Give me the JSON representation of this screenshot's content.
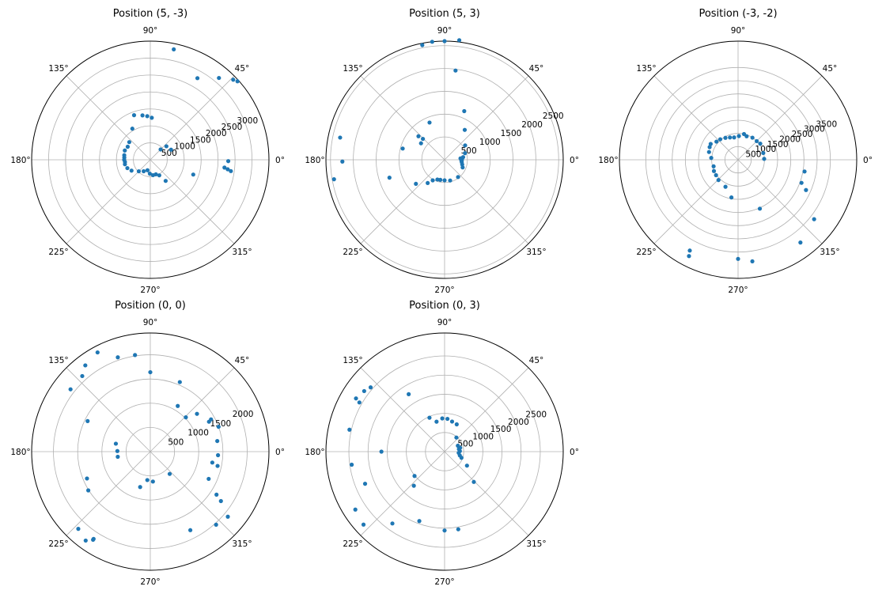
{
  "colors": {
    "point": "#1f77b4",
    "grid": "#b0b0b0",
    "frame": "#000000"
  },
  "chart_data": [
    {
      "type": "scatter",
      "projection": "polar",
      "title": "Position (5, -3)",
      "theta_ticks": [
        0,
        45,
        90,
        135,
        180,
        225,
        270,
        315
      ],
      "theta_tick_labels": [
        "0°",
        "45°",
        "90°",
        "135°",
        "180°",
        "225°",
        "270°",
        "315°"
      ],
      "r_ticks": [
        500,
        1000,
        1500,
        2000,
        2500,
        3000
      ],
      "r_tick_labels": [
        "500",
        "1000",
        "1500",
        "2000",
        "2500",
        "3000"
      ],
      "rlim": [
        0,
        3500
      ],
      "grid": true,
      "points": [
        {
          "theta": 78,
          "r": 3330
        },
        {
          "theta": 60,
          "r": 2780
        },
        {
          "theta": 50,
          "r": 3150
        },
        {
          "theta": 44,
          "r": 3400
        },
        {
          "theta": 42,
          "r": 3460
        },
        {
          "theta": 100,
          "r": 1330
        },
        {
          "theta": 94,
          "r": 1290
        },
        {
          "theta": 88,
          "r": 1240
        },
        {
          "theta": 110,
          "r": 1400
        },
        {
          "theta": 120,
          "r": 1060
        },
        {
          "theta": 140,
          "r": 810
        },
        {
          "theta": 150,
          "r": 770
        },
        {
          "theta": 160,
          "r": 800
        },
        {
          "theta": 170,
          "r": 780
        },
        {
          "theta": 175,
          "r": 770
        },
        {
          "theta": 180,
          "r": 770
        },
        {
          "theta": 185,
          "r": 750
        },
        {
          "theta": 190,
          "r": 760
        },
        {
          "theta": 200,
          "r": 720
        },
        {
          "theta": 210,
          "r": 640
        },
        {
          "theta": 225,
          "r": 480
        },
        {
          "theta": 240,
          "r": 390
        },
        {
          "theta": 255,
          "r": 320
        },
        {
          "theta": 268,
          "r": 410
        },
        {
          "theta": 280,
          "r": 460
        },
        {
          "theta": 291,
          "r": 460
        },
        {
          "theta": 300,
          "r": 530
        },
        {
          "theta": 306,
          "r": 770
        },
        {
          "theta": 341,
          "r": 1340
        },
        {
          "theta": 354,
          "r": 2200
        },
        {
          "theta": 353,
          "r": 2300
        },
        {
          "theta": 352,
          "r": 2400
        },
        {
          "theta": 359,
          "r": 2300
        },
        {
          "theta": 40,
          "r": 620
        },
        {
          "theta": 26,
          "r": 680
        },
        {
          "theta": 45,
          "r": 430
        }
      ]
    },
    {
      "type": "scatter",
      "projection": "polar",
      "title": "Position (5, 3)",
      "theta_ticks": [
        0,
        45,
        90,
        135,
        180,
        225,
        270,
        315
      ],
      "theta_tick_labels": [
        "0°",
        "45°",
        "90°",
        "135°",
        "180°",
        "225°",
        "270°",
        "315°"
      ],
      "r_ticks": [
        500,
        1000,
        1500,
        2000,
        2500
      ],
      "r_tick_labels": [
        "500",
        "1000",
        "1500",
        "2000",
        "2500"
      ],
      "rlim": [
        0,
        2600
      ],
      "grid": true,
      "points": [
        {
          "theta": 101,
          "r": 2560
        },
        {
          "theta": 96,
          "r": 2600
        },
        {
          "theta": 90,
          "r": 2600
        },
        {
          "theta": 83,
          "r": 2640
        },
        {
          "theta": 83,
          "r": 1970
        },
        {
          "theta": 68,
          "r": 1150
        },
        {
          "theta": 56,
          "r": 790
        },
        {
          "theta": 35,
          "r": 550
        },
        {
          "theta": 18,
          "r": 470
        },
        {
          "theta": 8,
          "r": 410
        },
        {
          "theta": 0,
          "r": 380
        },
        {
          "theta": 352,
          "r": 380
        },
        {
          "theta": 345,
          "r": 400
        },
        {
          "theta": 337,
          "r": 430
        },
        {
          "theta": 308,
          "r": 480
        },
        {
          "theta": 285,
          "r": 470
        },
        {
          "theta": 270,
          "r": 450
        },
        {
          "theta": 258,
          "r": 450
        },
        {
          "theta": 250,
          "r": 460
        },
        {
          "theta": 240,
          "r": 520
        },
        {
          "theta": 234,
          "r": 630
        },
        {
          "theta": 220,
          "r": 820
        },
        {
          "theta": 198,
          "r": 1270
        },
        {
          "theta": 190,
          "r": 2460
        },
        {
          "theta": 181,
          "r": 2240
        },
        {
          "theta": 168,
          "r": 2340
        },
        {
          "theta": 165,
          "r": 950
        },
        {
          "theta": 145,
          "r": 630
        },
        {
          "theta": 136,
          "r": 660
        },
        {
          "theta": 138,
          "r": 770
        },
        {
          "theta": 112,
          "r": 880
        },
        {
          "theta": 5,
          "r": 350
        },
        {
          "theta": 357,
          "r": 370
        }
      ]
    },
    {
      "type": "scatter",
      "projection": "polar",
      "title": "Position (-3, -2)",
      "theta_ticks": [
        0,
        45,
        90,
        135,
        180,
        225,
        270,
        315
      ],
      "theta_tick_labels": [
        "0°",
        "45°",
        "90°",
        "135°",
        "180°",
        "225°",
        "270°",
        "315°"
      ],
      "r_ticks": [
        500,
        1000,
        1500,
        2000,
        2500,
        3000,
        3500
      ],
      "r_tick_labels": [
        "500",
        "1000",
        "1500",
        "2000",
        "2500",
        "3000",
        "3500"
      ],
      "rlim": [
        0,
        4500
      ],
      "grid": true,
      "points": [
        {
          "theta": 70,
          "r": 950
        },
        {
          "theta": 77,
          "r": 1000
        },
        {
          "theta": 88,
          "r": 900
        },
        {
          "theta": 100,
          "r": 860
        },
        {
          "theta": 110,
          "r": 900
        },
        {
          "theta": 120,
          "r": 960
        },
        {
          "theta": 131,
          "r": 1030
        },
        {
          "theta": 140,
          "r": 1070
        },
        {
          "theta": 150,
          "r": 1200
        },
        {
          "theta": 156,
          "r": 1180
        },
        {
          "theta": 165,
          "r": 1140
        },
        {
          "theta": 176,
          "r": 1020
        },
        {
          "theta": 195,
          "r": 960
        },
        {
          "theta": 205,
          "r": 1010
        },
        {
          "theta": 215,
          "r": 1020
        },
        {
          "theta": 226,
          "r": 1070
        },
        {
          "theta": 245,
          "r": 1130
        },
        {
          "theta": 260,
          "r": 1450
        },
        {
          "theta": 242,
          "r": 3900
        },
        {
          "theta": 243,
          "r": 4100
        },
        {
          "theta": 270,
          "r": 3760
        },
        {
          "theta": 278,
          "r": 3890
        },
        {
          "theta": 294,
          "r": 2030
        },
        {
          "theta": 307,
          "r": 3930
        },
        {
          "theta": 322,
          "r": 3660
        },
        {
          "theta": 336,
          "r": 2820
        },
        {
          "theta": 340,
          "r": 2560
        },
        {
          "theta": 350,
          "r": 2560
        },
        {
          "theta": 45,
          "r": 1000
        },
        {
          "theta": 36,
          "r": 1040
        },
        {
          "theta": 15,
          "r": 990
        },
        {
          "theta": 2,
          "r": 990
        },
        {
          "theta": 57,
          "r": 1000
        }
      ]
    },
    {
      "type": "scatter",
      "projection": "polar",
      "title": "Position (0, 0)",
      "theta_ticks": [
        0,
        45,
        90,
        135,
        180,
        225,
        270,
        315
      ],
      "theta_tick_labels": [
        "0°",
        "45°",
        "90°",
        "135°",
        "180°",
        "225°",
        "270°",
        "315°"
      ],
      "r_ticks": [
        500,
        1000,
        1500,
        2000
      ],
      "r_tick_labels": [
        "500",
        "1000",
        "1500",
        "2000"
      ],
      "rlim": [
        0,
        2450
      ],
      "grid": true,
      "points": [
        {
          "theta": 118,
          "r": 2320
        },
        {
          "theta": 109,
          "r": 2060
        },
        {
          "theta": 99,
          "r": 2020
        },
        {
          "theta": 90,
          "r": 1640
        },
        {
          "theta": 67,
          "r": 1560
        },
        {
          "theta": 59,
          "r": 1100
        },
        {
          "theta": 44,
          "r": 1020
        },
        {
          "theta": 39,
          "r": 1240
        },
        {
          "theta": 27,
          "r": 1360
        },
        {
          "theta": 28,
          "r": 1420
        },
        {
          "theta": 20,
          "r": 1500
        },
        {
          "theta": 9,
          "r": 1400
        },
        {
          "theta": 357,
          "r": 1400
        },
        {
          "theta": 350,
          "r": 1300
        },
        {
          "theta": 348,
          "r": 1420
        },
        {
          "theta": 335,
          "r": 1330
        },
        {
          "theta": 327,
          "r": 1630
        },
        {
          "theta": 325,
          "r": 1780
        },
        {
          "theta": 320,
          "r": 2090
        },
        {
          "theta": 312,
          "r": 2030
        },
        {
          "theta": 297,
          "r": 1820
        },
        {
          "theta": 311,
          "r": 610
        },
        {
          "theta": 275,
          "r": 620
        },
        {
          "theta": 264,
          "r": 590
        },
        {
          "theta": 254,
          "r": 760
        },
        {
          "theta": 237,
          "r": 2170
        },
        {
          "theta": 234,
          "r": 2270
        },
        {
          "theta": 237,
          "r": 2150
        },
        {
          "theta": 227,
          "r": 2180
        },
        {
          "theta": 212,
          "r": 1510
        },
        {
          "theta": 203,
          "r": 1420
        },
        {
          "theta": 189,
          "r": 680
        },
        {
          "theta": 179,
          "r": 680
        },
        {
          "theta": 167,
          "r": 730
        },
        {
          "theta": 154,
          "r": 1440
        },
        {
          "theta": 142,
          "r": 2090
        },
        {
          "theta": 132,
          "r": 2100
        },
        {
          "theta": 127,
          "r": 2230
        }
      ]
    },
    {
      "type": "scatter",
      "projection": "polar",
      "title": "Position (0, 3)",
      "theta_ticks": [
        0,
        45,
        90,
        135,
        180,
        225,
        270,
        315
      ],
      "theta_tick_labels": [
        "0°",
        "45°",
        "90°",
        "135°",
        "180°",
        "225°",
        "270°",
        "315°"
      ],
      "r_ticks": [
        500,
        1000,
        1500,
        2000,
        2500
      ],
      "r_tick_labels": [
        "500",
        "1000",
        "1500",
        "2000",
        "2500"
      ],
      "rlim": [
        0,
        3100
      ],
      "grid": true,
      "points": [
        {
          "theta": 122,
          "r": 1770
        },
        {
          "theta": 114,
          "r": 970
        },
        {
          "theta": 105,
          "r": 810
        },
        {
          "theta": 94,
          "r": 870
        },
        {
          "theta": 85,
          "r": 860
        },
        {
          "theta": 76,
          "r": 810
        },
        {
          "theta": 66,
          "r": 780
        },
        {
          "theta": 50,
          "r": 480
        },
        {
          "theta": 24,
          "r": 380
        },
        {
          "theta": 10,
          "r": 380
        },
        {
          "theta": 355,
          "r": 370
        },
        {
          "theta": 346,
          "r": 410
        },
        {
          "theta": 340,
          "r": 470
        },
        {
          "theta": 328,
          "r": 690
        },
        {
          "theta": 314,
          "r": 1100
        },
        {
          "theta": 280,
          "r": 2060
        },
        {
          "theta": 270,
          "r": 2060
        },
        {
          "theta": 250,
          "r": 1930
        },
        {
          "theta": 234,
          "r": 2320
        },
        {
          "theta": 222,
          "r": 2850
        },
        {
          "theta": 213,
          "r": 2780
        },
        {
          "theta": 202,
          "r": 2240
        },
        {
          "theta": 188,
          "r": 2450
        },
        {
          "theta": 180,
          "r": 1650
        },
        {
          "theta": 167,
          "r": 2550
        },
        {
          "theta": 150,
          "r": 2570
        },
        {
          "theta": 143,
          "r": 2630
        },
        {
          "theta": 139,
          "r": 2560
        },
        {
          "theta": 149,
          "r": 2700
        },
        {
          "theta": 219,
          "r": 1010
        },
        {
          "theta": 228,
          "r": 1200
        },
        {
          "theta": 14,
          "r": 420
        },
        {
          "theta": 2,
          "r": 400
        }
      ]
    }
  ]
}
